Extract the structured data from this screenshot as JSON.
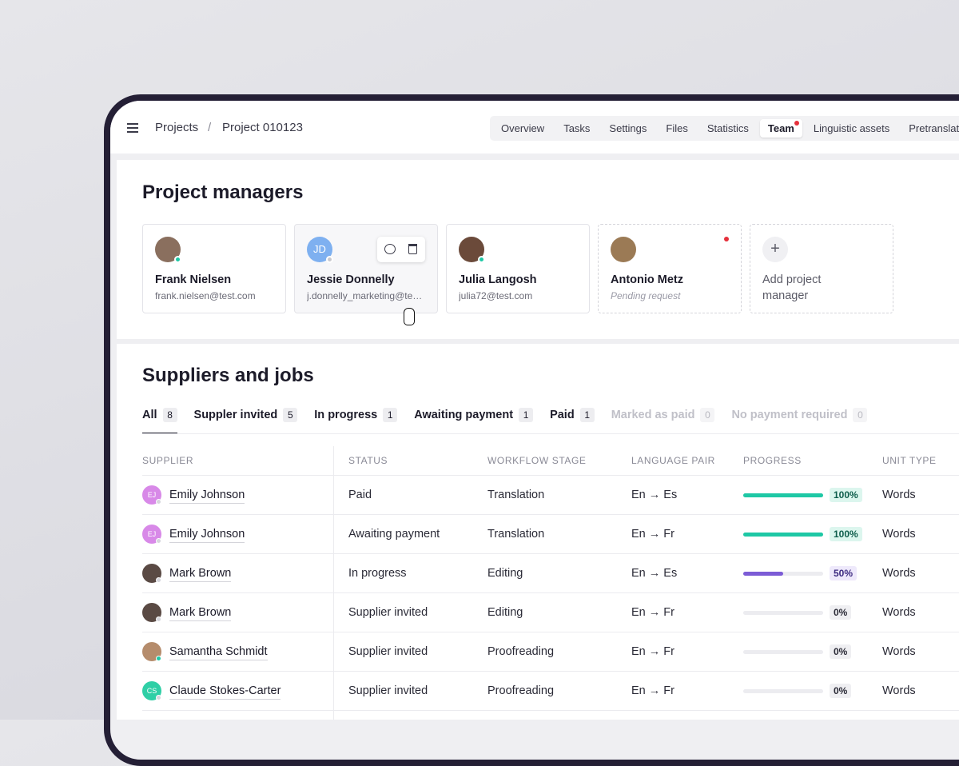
{
  "breadcrumb": {
    "items": [
      "Projects",
      "Project 010123"
    ],
    "separator": "/"
  },
  "nav": {
    "tabs": [
      "Overview",
      "Tasks",
      "Settings",
      "Files",
      "Statistics",
      "Team",
      "Linguistic assets",
      "Pretranslation"
    ],
    "active": 5
  },
  "managers": {
    "title": "Project managers",
    "people": [
      {
        "name": "Frank Nielsen",
        "email": "frank.nielsen@test.com",
        "online": true
      },
      {
        "name": "Jessie Donnelly",
        "initials": "JD",
        "email": "j.donnelly_marketing@test.com",
        "online": false
      },
      {
        "name": "Julia Langosh",
        "email": "julia72@test.com",
        "online": true
      },
      {
        "name": "Antonio Metz",
        "note": "Pending request"
      }
    ],
    "add_label": "Add project manager"
  },
  "suppliers": {
    "title": "Suppliers and jobs",
    "tabs": [
      {
        "label": "All",
        "count": 8
      },
      {
        "label": "Suppler invited",
        "count": 5
      },
      {
        "label": "In progress",
        "count": 1
      },
      {
        "label": "Awaiting payment",
        "count": 1
      },
      {
        "label": "Paid",
        "count": 1
      },
      {
        "label": "Marked as paid",
        "count": 0
      },
      {
        "label": "No payment required",
        "count": 0
      }
    ],
    "columns": [
      "SUPPLIER",
      "STATUS",
      "WORKFLOW STAGE",
      "LANGUAGE PAIR",
      "PROGRESS",
      "UNIT TYPE"
    ],
    "rows": [
      {
        "supplier": "Emily Johnson",
        "initials": "EJ",
        "status": "Paid",
        "stage": "Translation",
        "pair": "En → Es",
        "progress": {
          "value": 100,
          "label": "100%"
        },
        "unit": "Words"
      },
      {
        "supplier": "Emily Johnson",
        "initials": "EJ",
        "status": "Awaiting payment",
        "stage": "Translation",
        "pair": "En → Fr",
        "progress": {
          "value": 100,
          "label": "100%"
        },
        "unit": "Words"
      },
      {
        "supplier": "Mark Brown",
        "status": "In progress",
        "stage": "Editing",
        "pair": "En → Es",
        "progress": {
          "value": 50,
          "label": "50%"
        },
        "unit": "Words"
      },
      {
        "supplier": "Mark Brown",
        "status": "Supplier invited",
        "stage": "Editing",
        "pair": "En → Fr",
        "progress": {
          "value": 0,
          "label": "0%"
        },
        "unit": "Words"
      },
      {
        "supplier": "Samantha Schmidt",
        "status": "Supplier invited",
        "stage": "Proofreading",
        "pair": "En → Fr",
        "progress": {
          "value": 0,
          "label": "0%"
        },
        "unit": "Words"
      },
      {
        "supplier": "Claude Stokes-Carter",
        "initials": "CS",
        "status": "Supplier invited",
        "stage": "Proofreading",
        "pair": "En → Fr",
        "progress": {
          "value": 0,
          "label": "0%"
        },
        "unit": "Words"
      }
    ]
  }
}
